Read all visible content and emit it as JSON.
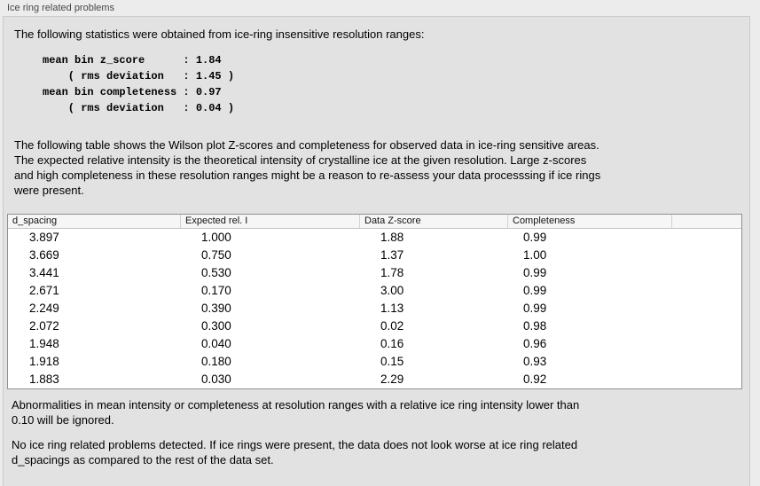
{
  "panel": {
    "title": "Ice ring related problems"
  },
  "intro": {
    "text": "The following statistics were obtained from ice-ring insensitive resolution ranges:"
  },
  "stats_block": {
    "text": "mean bin z_score      : 1.84\n    ( rms deviation   : 1.45 )\nmean bin completeness : 0.97\n    ( rms deviation   : 0.04 )"
  },
  "table_description": {
    "text": "The following table shows the Wilson plot Z-scores and completeness for observed data in ice-ring sensitive areas.\nThe expected relative intensity is the theoretical intensity of crystalline ice at the given resolution. Large z-scores\nand high completeness in these resolution ranges might be a reason to re-assess your data processsing if ice rings\nwere present."
  },
  "table": {
    "columns": [
      "d_spacing",
      "Expected rel. I",
      "Data Z-score",
      "Completeness"
    ],
    "rows": [
      [
        "3.897",
        "1.000",
        "1.88",
        "0.99"
      ],
      [
        "3.669",
        "0.750",
        "1.37",
        "1.00"
      ],
      [
        "3.441",
        "0.530",
        "1.78",
        "0.99"
      ],
      [
        "2.671",
        "0.170",
        "3.00",
        "0.99"
      ],
      [
        "2.249",
        "0.390",
        "1.13",
        "0.99"
      ],
      [
        "2.072",
        "0.300",
        "0.02",
        "0.98"
      ],
      [
        "1.948",
        "0.040",
        "0.16",
        "0.96"
      ],
      [
        "1.918",
        "0.180",
        "0.15",
        "0.93"
      ],
      [
        "1.883",
        "0.030",
        "2.29",
        "0.92"
      ]
    ]
  },
  "notes": {
    "ignore": {
      "text": "Abnormalities in mean intensity or completeness at resolution ranges with a relative ice ring intensity lower than\n0.10 will be ignored."
    },
    "conclusion": {
      "text": "No ice ring related problems detected. If ice rings were present, the data does not look worse at ice ring related\nd_spacings as compared to the rest of the data set."
    }
  },
  "colors": {
    "page_background": "#ececec",
    "panel_background": "#e2e2e2",
    "panel_border": "#c9c9c9",
    "table_background": "#ffffff",
    "table_border": "#8f8f8f",
    "table_header_background": "#f6f6f6",
    "title_text": "#474747",
    "body_text": "#000000"
  }
}
